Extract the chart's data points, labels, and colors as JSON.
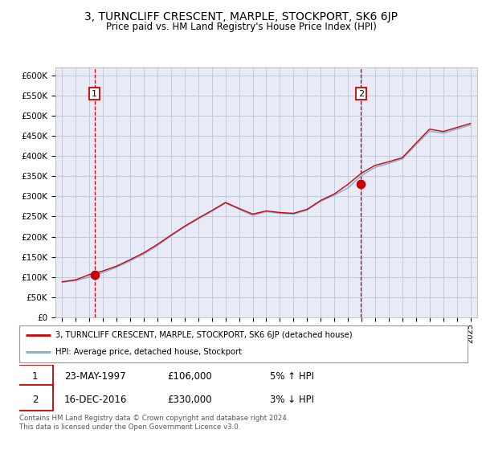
{
  "title": "3, TURNCLIFF CRESCENT, MARPLE, STOCKPORT, SK6 6JP",
  "subtitle": "Price paid vs. HM Land Registry's House Price Index (HPI)",
  "legend_line1": "3, TURNCLIFF CRESCENT, MARPLE, STOCKPORT, SK6 6JP (detached house)",
  "legend_line2": "HPI: Average price, detached house, Stockport",
  "sale1_date": "23-MAY-1997",
  "sale1_price": "£106,000",
  "sale1_hpi": "5% ↑ HPI",
  "sale1_year": 1997.38,
  "sale1_value": 106000,
  "sale2_date": "16-DEC-2016",
  "sale2_price": "£330,000",
  "sale2_hpi": "3% ↓ HPI",
  "sale2_year": 2016.96,
  "sale2_value": 330000,
  "footer": "Contains HM Land Registry data © Crown copyright and database right 2024.\nThis data is licensed under the Open Government Licence v3.0.",
  "ylim": [
    0,
    620000
  ],
  "xlim": [
    1994.5,
    2025.5
  ],
  "y_ticks": [
    0,
    50000,
    100000,
    150000,
    200000,
    250000,
    300000,
    350000,
    400000,
    450000,
    500000,
    550000,
    600000
  ],
  "y_tick_labels": [
    "£0",
    "£50K",
    "£100K",
    "£150K",
    "£200K",
    "£250K",
    "£300K",
    "£350K",
    "£400K",
    "£450K",
    "£500K",
    "£550K",
    "£600K"
  ],
  "x_ticks": [
    1995,
    1996,
    1997,
    1998,
    1999,
    2000,
    2001,
    2002,
    2003,
    2004,
    2005,
    2006,
    2007,
    2008,
    2009,
    2010,
    2011,
    2012,
    2013,
    2014,
    2015,
    2016,
    2017,
    2018,
    2019,
    2020,
    2021,
    2022,
    2023,
    2024,
    2025
  ],
  "hpi_years": [
    1995,
    1996,
    1997,
    1998,
    1999,
    2000,
    2001,
    2002,
    2003,
    2004,
    2005,
    2006,
    2007,
    2008,
    2009,
    2010,
    2011,
    2012,
    2013,
    2014,
    2015,
    2016,
    2017,
    2018,
    2019,
    2020,
    2021,
    2022,
    2023,
    2024,
    2025
  ],
  "hpi_values": [
    87000,
    91000,
    100000,
    111000,
    124000,
    140000,
    157000,
    178000,
    202000,
    224000,
    244000,
    263000,
    283000,
    268000,
    253000,
    262000,
    258000,
    256000,
    266000,
    288000,
    303000,
    321000,
    352000,
    372000,
    382000,
    393000,
    428000,
    462000,
    457000,
    467000,
    477000
  ],
  "red_values": [
    88000,
    93000,
    106000,
    115000,
    127000,
    143000,
    160000,
    181000,
    204000,
    226000,
    246000,
    265000,
    285000,
    270000,
    256000,
    264000,
    260000,
    258000,
    268000,
    290000,
    306000,
    330000,
    358000,
    377000,
    386000,
    396000,
    432000,
    467000,
    461000,
    471000,
    481000
  ],
  "grid_color": "#c0c8e0",
  "bg_color": "#e8eaf6",
  "red_line_color": "#cc0000",
  "blue_line_color": "#7bafd4",
  "marker_color": "#cc0000",
  "dashed_line_color": "#cc0000",
  "box_edge_color": "#cc0000"
}
